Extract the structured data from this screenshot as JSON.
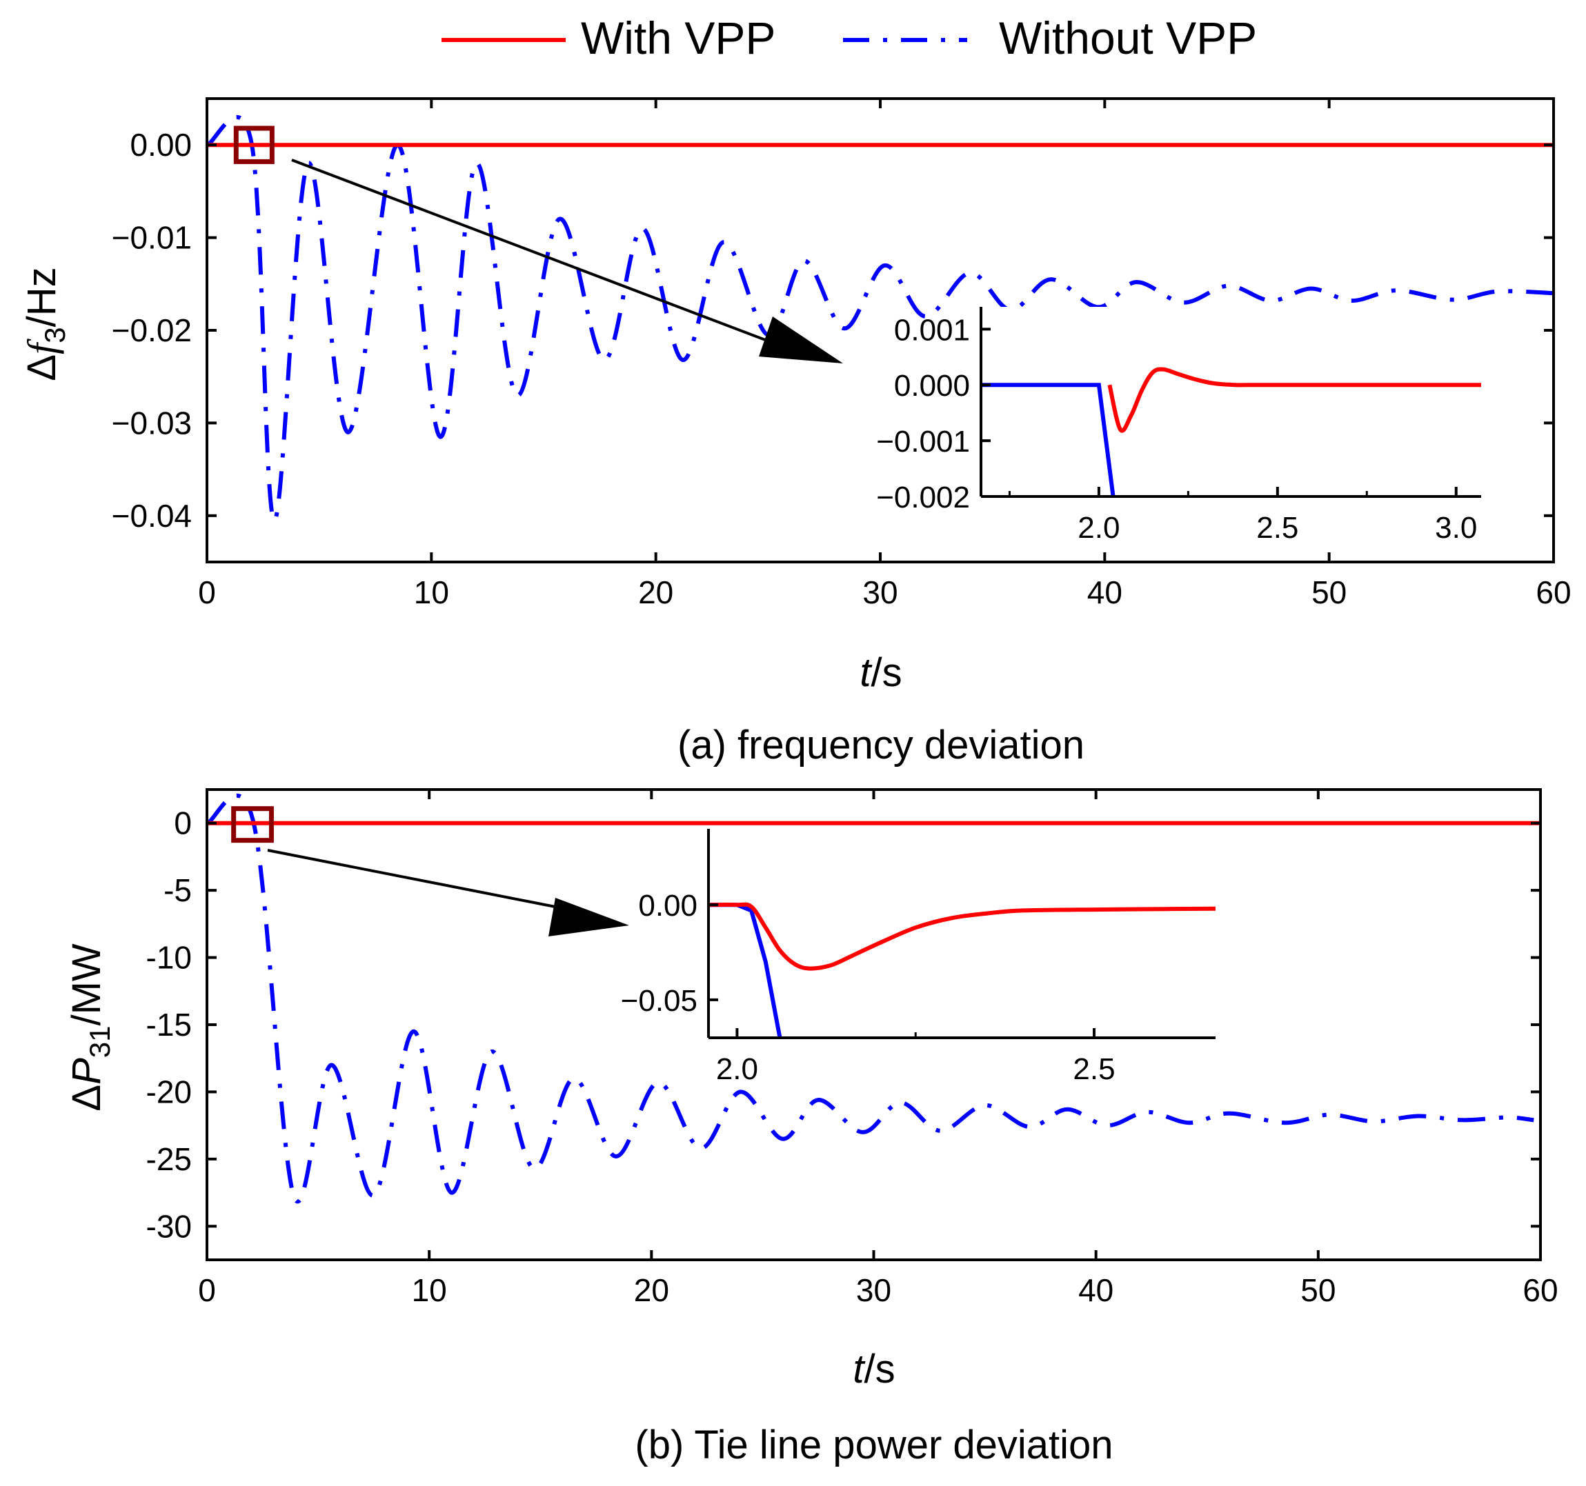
{
  "legend": {
    "with_label": "With VPP",
    "without_label": "Without VPP",
    "placement": "top-center"
  },
  "colors": {
    "with_vpp": "#ff0000",
    "without_vpp": "#0000ff",
    "zoom_box": "#8b0000",
    "axis": "#000000"
  },
  "chart_data": [
    {
      "id": "a",
      "type": "line",
      "caption": "(a) frequency deviation",
      "xlabel_italic": "t",
      "xlabel_rest": "/s",
      "ylabel_prefix": "Δ",
      "ylabel_var": "f",
      "ylabel_sub": "3",
      "ylabel_unit": "/Hz",
      "xlim": [
        0,
        60
      ],
      "ylim": [
        -0.045,
        0.005
      ],
      "xticks": [
        0,
        10,
        20,
        30,
        40,
        50,
        60
      ],
      "xticklabels": [
        "0",
        "10",
        "20",
        "30",
        "40",
        "50",
        "60"
      ],
      "yticks": [
        0,
        -0.01,
        -0.02,
        -0.03,
        -0.04
      ],
      "yticklabels": [
        "0.00",
        "−0.01",
        "−0.02",
        "−0.03",
        "−0.04"
      ],
      "zoom_box": {
        "x_range": [
          1.3,
          2.9
        ],
        "y_range": [
          -0.0018,
          0.0018
        ]
      },
      "series": [
        {
          "name": "With VPP",
          "style": "solid",
          "x": [
            0,
            60
          ],
          "y": [
            0,
            0
          ]
        },
        {
          "name": "Without VPP",
          "style": "dash-dot",
          "x": [
            0,
            2,
            3,
            4.5,
            6.3,
            8.5,
            10.4,
            12,
            13.8,
            15.7,
            17.7,
            19.4,
            21.2,
            23,
            25,
            26.6,
            28.4,
            30.2,
            32,
            34,
            35.8,
            37.6,
            39.7,
            41.4,
            43.5,
            45.5,
            47.4,
            49.2,
            51,
            53,
            55.5,
            57.5,
            60
          ],
          "y": [
            0,
            0,
            -0.0405,
            -0.002,
            -0.031,
            0,
            -0.0315,
            -0.002,
            -0.027,
            -0.008,
            -0.0232,
            -0.009,
            -0.0232,
            -0.0105,
            -0.0205,
            -0.0125,
            -0.0198,
            -0.013,
            -0.0185,
            -0.0138,
            -0.0178,
            -0.0145,
            -0.0175,
            -0.0148,
            -0.017,
            -0.0152,
            -0.0168,
            -0.0155,
            -0.0168,
            -0.0157,
            -0.0167,
            -0.0158,
            -0.016
          ]
        }
      ],
      "inset": {
        "xlim": [
          1.67,
          3.07
        ],
        "ylim": [
          -0.002,
          0.0014
        ],
        "xticks": [
          2.0,
          2.5,
          3.0
        ],
        "xticklabels": [
          "2.0",
          "2.5",
          "3.0"
        ],
        "yticks": [
          0.001,
          0.0,
          -0.001,
          -0.002
        ],
        "yticklabels": [
          "0.001",
          "0.000",
          "−0.001",
          "−0.002"
        ],
        "series": [
          {
            "name": "With VPP",
            "x": [
              2.03,
              2.06,
              2.09,
              2.12,
              2.15,
              2.18,
              2.22,
              2.27,
              2.32,
              2.38,
              2.45,
              2.6,
              2.8,
              3.07
            ],
            "y": [
              0,
              -0.0008,
              -0.00055,
              -0.0001,
              0.00022,
              0.00028,
              0.0002,
              0.0001,
              3e-05,
              0,
              0,
              0,
              0,
              0
            ]
          },
          {
            "name": "Without VPP",
            "x": [
              1.67,
              2.0,
              2.04
            ],
            "y": [
              0,
              0,
              -0.002
            ]
          }
        ]
      }
    },
    {
      "id": "b",
      "type": "line",
      "caption": "(b) Tie line power deviation",
      "xlabel_italic": "t",
      "xlabel_rest": "/s",
      "ylabel_prefix": "Δ",
      "ylabel_var": "P",
      "ylabel_sub": "31",
      "ylabel_unit": "/MW",
      "xlim": [
        0,
        60
      ],
      "ylim": [
        -32.5,
        2.5
      ],
      "xticks": [
        0,
        10,
        20,
        30,
        40,
        50,
        60
      ],
      "xticklabels": [
        "0",
        "10",
        "20",
        "30",
        "40",
        "50",
        "60"
      ],
      "yticks": [
        0,
        -5,
        -10,
        -15,
        -20,
        -25,
        -30
      ],
      "yticklabels": [
        "0",
        "-5",
        "-10",
        "-15",
        "-20",
        "-25",
        "-30"
      ],
      "zoom_box": {
        "x_range": [
          1.2,
          2.9
        ],
        "y_range": [
          -1,
          0.8
        ]
      },
      "series": [
        {
          "name": "With VPP",
          "style": "solid",
          "x": [
            0,
            60
          ],
          "y": [
            0,
            0
          ]
        },
        {
          "name": "Without VPP",
          "style": "dash-dot",
          "x": [
            0,
            2.1,
            3.9,
            5.6,
            7.5,
            9.3,
            11,
            12.8,
            14.7,
            16.5,
            18.4,
            20.3,
            22.2,
            24,
            25.9,
            27.5,
            29.5,
            31.2,
            33,
            35,
            37,
            38.7,
            40.5,
            42.3,
            44.2,
            46,
            48.5,
            50.5,
            52.5,
            54.5,
            56.5,
            58.5,
            59.7
          ],
          "y": [
            0,
            0,
            -27.7,
            -18,
            -27.7,
            -15.5,
            -27.5,
            -17,
            -25.7,
            -19,
            -24.8,
            -19.3,
            -24.2,
            -20,
            -23.5,
            -20.6,
            -23,
            -20.8,
            -22.9,
            -21,
            -22.6,
            -21.3,
            -22.5,
            -21.5,
            -22.3,
            -21.6,
            -22.3,
            -21.7,
            -22.2,
            -21.8,
            -22.1,
            -21.9,
            -22.1
          ]
        }
      ],
      "inset": {
        "xlim": [
          1.96,
          2.67
        ],
        "ylim": [
          -0.07,
          0.04
        ],
        "xticks": [
          2.0,
          2.5
        ],
        "xticklabels": [
          "2.0",
          "2.5"
        ],
        "yticks": [
          0.0,
          -0.05
        ],
        "yticklabels": [
          "0.00",
          "−0.05"
        ],
        "series": [
          {
            "name": "With VPP",
            "x": [
              1.96,
              2.0,
              2.02,
              2.04,
              2.06,
              2.08,
              2.1,
              2.13,
              2.16,
              2.2,
              2.25,
              2.3,
              2.35,
              2.4,
              2.5,
              2.6,
              2.67
            ],
            "y": [
              0,
              0,
              -0.001,
              -0.012,
              -0.024,
              -0.031,
              -0.0335,
              -0.032,
              -0.027,
              -0.02,
              -0.012,
              -0.007,
              -0.0045,
              -0.003,
              -0.0025,
              -0.0022,
              -0.002
            ]
          },
          {
            "name": "Without VPP",
            "x": [
              1.96,
              2.0,
              2.02,
              2.04,
              2.06
            ],
            "y": [
              0,
              0,
              -0.003,
              -0.03,
              -0.07
            ]
          }
        ]
      }
    }
  ]
}
